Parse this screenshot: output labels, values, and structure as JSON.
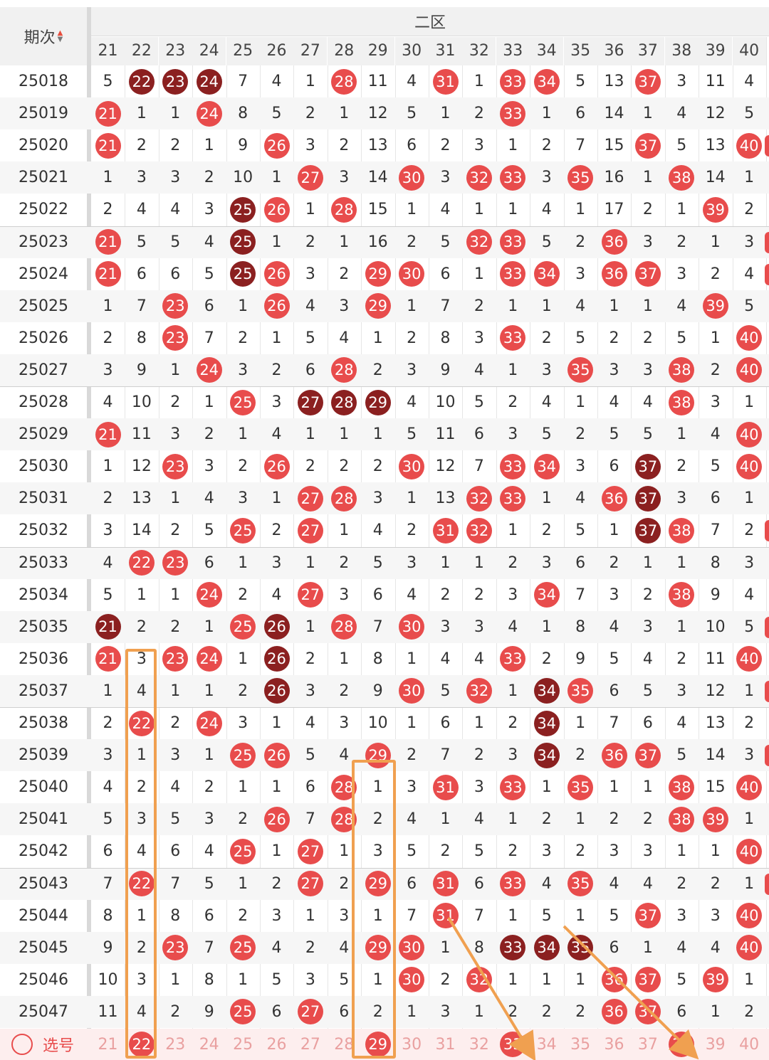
{
  "header": {
    "period_label": "期次",
    "zone_label": "二区",
    "columns": [
      "21",
      "22",
      "23",
      "24",
      "25",
      "26",
      "27",
      "28",
      "29",
      "30",
      "31",
      "32",
      "33",
      "34",
      "35",
      "36",
      "37",
      "38",
      "39",
      "40"
    ]
  },
  "colors": {
    "hit": "#e84c4c",
    "hit_repeat": "#8b2020",
    "annotation": "#f0a050"
  },
  "rows": [
    {
      "period": "25018",
      "cells": [
        "5",
        {
          "h": "22",
          "d": 1
        },
        {
          "h": "23",
          "d": 1
        },
        {
          "h": "24",
          "d": 1
        },
        "7",
        "4",
        "1",
        {
          "h": "28"
        },
        "11",
        "4",
        {
          "h": "31"
        },
        "1",
        {
          "h": "33"
        },
        {
          "h": "34"
        },
        "5",
        "13",
        {
          "h": "37"
        },
        "3",
        "11",
        "4"
      ]
    },
    {
      "period": "25019",
      "cells": [
        {
          "h": "21"
        },
        "1",
        "1",
        {
          "h": "24"
        },
        "8",
        "5",
        "2",
        "1",
        "12",
        "5",
        "1",
        "2",
        {
          "h": "33"
        },
        "1",
        "6",
        "14",
        "1",
        "4",
        "12",
        "5"
      ]
    },
    {
      "period": "25020",
      "cells": [
        {
          "h": "21"
        },
        "2",
        "2",
        "1",
        "9",
        {
          "h": "26"
        },
        "3",
        "2",
        "13",
        "6",
        "2",
        "3",
        "1",
        "2",
        "7",
        "15",
        {
          "h": "37"
        },
        "5",
        "13",
        {
          "h": "40"
        }
      ]
    },
    {
      "period": "25021",
      "cells": [
        "1",
        "3",
        "3",
        "2",
        "10",
        "1",
        {
          "h": "27"
        },
        "3",
        "14",
        {
          "h": "30"
        },
        "3",
        {
          "h": "32"
        },
        {
          "h": "33"
        },
        "3",
        {
          "h": "35"
        },
        "16",
        "1",
        {
          "h": "38"
        },
        "14",
        "1"
      ]
    },
    {
      "period": "25022",
      "cells": [
        "2",
        "4",
        "4",
        "3",
        {
          "h": "25",
          "d": 1
        },
        {
          "h": "26"
        },
        "1",
        {
          "h": "28"
        },
        "15",
        "1",
        "4",
        "1",
        "1",
        "4",
        "1",
        "17",
        "2",
        "1",
        {
          "h": "39"
        },
        "2"
      ]
    },
    {
      "period": "25023",
      "cells": [
        {
          "h": "21"
        },
        "5",
        "5",
        "4",
        {
          "h": "25",
          "d": 1
        },
        "1",
        "2",
        "1",
        "16",
        "2",
        "5",
        {
          "h": "32"
        },
        {
          "h": "33"
        },
        "5",
        "2",
        {
          "h": "36"
        },
        "3",
        "2",
        "1",
        "3"
      ]
    },
    {
      "period": "25024",
      "cells": [
        {
          "h": "21"
        },
        "6",
        "6",
        "5",
        {
          "h": "25",
          "d": 1
        },
        {
          "h": "26"
        },
        "3",
        "2",
        {
          "h": "29"
        },
        {
          "h": "30"
        },
        "6",
        "1",
        {
          "h": "33"
        },
        {
          "h": "34"
        },
        "3",
        {
          "h": "36"
        },
        {
          "h": "37"
        },
        "3",
        "2",
        "4"
      ]
    },
    {
      "period": "25025",
      "cells": [
        "1",
        "7",
        {
          "h": "23"
        },
        "6",
        "1",
        {
          "h": "26"
        },
        "4",
        "3",
        {
          "h": "29"
        },
        "1",
        "7",
        "2",
        "1",
        "1",
        "4",
        "1",
        "1",
        "4",
        {
          "h": "39"
        },
        "5"
      ]
    },
    {
      "period": "25026",
      "cells": [
        "2",
        "8",
        {
          "h": "23"
        },
        "7",
        "2",
        "1",
        "5",
        "4",
        "1",
        "2",
        "8",
        "3",
        {
          "h": "33"
        },
        "2",
        "5",
        "2",
        "2",
        "5",
        "1",
        {
          "h": "40"
        }
      ]
    },
    {
      "period": "25027",
      "cells": [
        "3",
        "9",
        "1",
        {
          "h": "24"
        },
        "3",
        "2",
        "6",
        {
          "h": "28"
        },
        "2",
        "3",
        "9",
        "4",
        "1",
        "3",
        {
          "h": "35"
        },
        "3",
        "3",
        {
          "h": "38"
        },
        "2",
        {
          "h": "40"
        }
      ]
    },
    {
      "period": "25028",
      "cells": [
        "4",
        "10",
        "2",
        "1",
        {
          "h": "25"
        },
        "3",
        {
          "h": "27",
          "d": 1
        },
        {
          "h": "28",
          "d": 1
        },
        {
          "h": "29",
          "d": 1
        },
        "4",
        "10",
        "5",
        "2",
        "4",
        "1",
        "4",
        "4",
        {
          "h": "38"
        },
        "3",
        "1"
      ]
    },
    {
      "period": "25029",
      "cells": [
        {
          "h": "21"
        },
        "11",
        "3",
        "2",
        "1",
        "4",
        "1",
        "1",
        "1",
        "5",
        "11",
        "6",
        "3",
        "5",
        "2",
        "5",
        "5",
        "1",
        "4",
        {
          "h": "40"
        }
      ]
    },
    {
      "period": "25030",
      "cells": [
        "1",
        "12",
        {
          "h": "23"
        },
        "3",
        "2",
        {
          "h": "26"
        },
        "2",
        "2",
        "2",
        {
          "h": "30"
        },
        "12",
        "7",
        {
          "h": "33"
        },
        {
          "h": "34"
        },
        "3",
        "6",
        {
          "h": "37",
          "d": 1
        },
        "2",
        "5",
        {
          "h": "40"
        }
      ]
    },
    {
      "period": "25031",
      "cells": [
        "2",
        "13",
        "1",
        "4",
        "3",
        "1",
        {
          "h": "27"
        },
        {
          "h": "28"
        },
        "3",
        "1",
        "13",
        {
          "h": "32"
        },
        {
          "h": "33"
        },
        "1",
        "4",
        {
          "h": "36"
        },
        {
          "h": "37",
          "d": 1
        },
        "3",
        "6",
        "1"
      ]
    },
    {
      "period": "25032",
      "cells": [
        "3",
        "14",
        "2",
        "5",
        {
          "h": "25"
        },
        "2",
        {
          "h": "27"
        },
        "1",
        "4",
        "2",
        {
          "h": "31"
        },
        {
          "h": "32"
        },
        "1",
        "2",
        "5",
        "1",
        {
          "h": "37",
          "d": 1
        },
        {
          "h": "38"
        },
        "7",
        "2"
      ]
    },
    {
      "period": "25033",
      "cells": [
        "4",
        {
          "h": "22"
        },
        {
          "h": "23"
        },
        "6",
        "1",
        "3",
        "1",
        "2",
        "5",
        "3",
        "1",
        "1",
        "2",
        "3",
        "6",
        "2",
        "1",
        "1",
        "8",
        "3"
      ]
    },
    {
      "period": "25034",
      "cells": [
        "5",
        "1",
        "1",
        {
          "h": "24"
        },
        "2",
        "4",
        {
          "h": "27"
        },
        "3",
        "6",
        "4",
        "2",
        "2",
        "3",
        {
          "h": "34"
        },
        "7",
        "3",
        "2",
        {
          "h": "38"
        },
        "9",
        "4"
      ]
    },
    {
      "period": "25035",
      "cells": [
        {
          "h": "21",
          "d": 1
        },
        "2",
        "2",
        "1",
        {
          "h": "25"
        },
        {
          "h": "26",
          "d": 1
        },
        "1",
        {
          "h": "28"
        },
        "7",
        {
          "h": "30"
        },
        "3",
        "3",
        "4",
        "1",
        "8",
        "4",
        "3",
        "1",
        "10",
        "5"
      ]
    },
    {
      "period": "25036",
      "cells": [
        {
          "h": "21"
        },
        "3",
        {
          "h": "23"
        },
        {
          "h": "24"
        },
        "1",
        {
          "h": "26",
          "d": 1
        },
        "2",
        "1",
        "8",
        "1",
        "4",
        "4",
        {
          "h": "33"
        },
        "2",
        "9",
        "5",
        "4",
        "2",
        "11",
        {
          "h": "40"
        }
      ]
    },
    {
      "period": "25037",
      "cells": [
        "1",
        "4",
        "1",
        "1",
        "2",
        {
          "h": "26",
          "d": 1
        },
        "3",
        "2",
        "9",
        {
          "h": "30"
        },
        "5",
        {
          "h": "32"
        },
        "1",
        {
          "h": "34",
          "d": 1
        },
        {
          "h": "35"
        },
        "6",
        "5",
        "3",
        "12",
        "1"
      ]
    },
    {
      "period": "25038",
      "cells": [
        "2",
        {
          "h": "22"
        },
        "2",
        {
          "h": "24"
        },
        "3",
        "1",
        "4",
        "3",
        "10",
        "1",
        "6",
        "1",
        "2",
        {
          "h": "34",
          "d": 1
        },
        "1",
        "7",
        "6",
        "4",
        "13",
        "2"
      ]
    },
    {
      "period": "25039",
      "cells": [
        "3",
        "1",
        "3",
        "1",
        {
          "h": "25"
        },
        {
          "h": "26"
        },
        "5",
        "4",
        {
          "h": "29"
        },
        "2",
        "7",
        "2",
        "3",
        {
          "h": "34",
          "d": 1
        },
        "2",
        {
          "h": "36"
        },
        {
          "h": "37"
        },
        "5",
        "14",
        "3"
      ]
    },
    {
      "period": "25040",
      "cells": [
        "4",
        "2",
        "4",
        "2",
        "1",
        "1",
        "6",
        {
          "h": "28"
        },
        "1",
        "3",
        {
          "h": "31"
        },
        "3",
        {
          "h": "33"
        },
        "1",
        {
          "h": "35"
        },
        "1",
        "1",
        {
          "h": "38"
        },
        "15",
        {
          "h": "40"
        }
      ]
    },
    {
      "period": "25041",
      "cells": [
        "5",
        "3",
        "5",
        "3",
        "2",
        {
          "h": "26"
        },
        "7",
        {
          "h": "28"
        },
        "2",
        "4",
        "1",
        "4",
        "1",
        "2",
        "1",
        "2",
        "2",
        {
          "h": "38"
        },
        {
          "h": "39"
        },
        "1"
      ]
    },
    {
      "period": "25042",
      "cells": [
        "6",
        "4",
        "6",
        "4",
        {
          "h": "25"
        },
        "1",
        {
          "h": "27"
        },
        "1",
        "3",
        "5",
        "2",
        "5",
        "2",
        "3",
        "2",
        "3",
        "3",
        "1",
        "1",
        {
          "h": "40"
        }
      ]
    },
    {
      "period": "25043",
      "cells": [
        "7",
        {
          "h": "22"
        },
        "7",
        "5",
        "1",
        "2",
        {
          "h": "27"
        },
        "2",
        {
          "h": "29"
        },
        "6",
        {
          "h": "31"
        },
        "6",
        {
          "h": "33"
        },
        "4",
        {
          "h": "35"
        },
        "4",
        "4",
        "2",
        "2",
        "1"
      ]
    },
    {
      "period": "25044",
      "cells": [
        "8",
        "1",
        "8",
        "6",
        "2",
        "3",
        "1",
        "3",
        "1",
        "7",
        {
          "h": "31"
        },
        "7",
        "1",
        "5",
        "1",
        "5",
        {
          "h": "37"
        },
        "3",
        "3",
        {
          "h": "40"
        }
      ]
    },
    {
      "period": "25045",
      "cells": [
        "9",
        "2",
        {
          "h": "23"
        },
        "7",
        {
          "h": "25"
        },
        "4",
        "2",
        "4",
        {
          "h": "29"
        },
        {
          "h": "30"
        },
        "1",
        "8",
        {
          "h": "33",
          "d": 1
        },
        {
          "h": "34",
          "d": 1
        },
        {
          "h": "35",
          "d": 1
        },
        "6",
        "1",
        "4",
        "4",
        {
          "h": "40"
        }
      ]
    },
    {
      "period": "25046",
      "cells": [
        "10",
        "3",
        "1",
        "8",
        "1",
        "5",
        "3",
        "5",
        "1",
        {
          "h": "30"
        },
        "2",
        {
          "h": "32"
        },
        "1",
        "1",
        "1",
        {
          "h": "36"
        },
        {
          "h": "37"
        },
        "5",
        {
          "h": "39"
        },
        "1"
      ]
    },
    {
      "period": "25047",
      "cells": [
        "11",
        "4",
        "2",
        "9",
        {
          "h": "25"
        },
        "6",
        {
          "h": "27"
        },
        "6",
        "2",
        "1",
        "3",
        "1",
        "2",
        "2",
        "2",
        {
          "h": "36"
        },
        {
          "h": "37"
        },
        "6",
        "1",
        "2"
      ]
    }
  ],
  "pick": {
    "label": "选号",
    "cells": [
      "21",
      {
        "h": "22"
      },
      "23",
      "24",
      "25",
      "26",
      "27",
      "28",
      {
        "h": "29"
      },
      "30",
      "31",
      "32",
      {
        "h": "33"
      },
      "34",
      "35",
      "36",
      "37",
      {
        "h": "38"
      },
      "39",
      "40"
    ]
  }
}
